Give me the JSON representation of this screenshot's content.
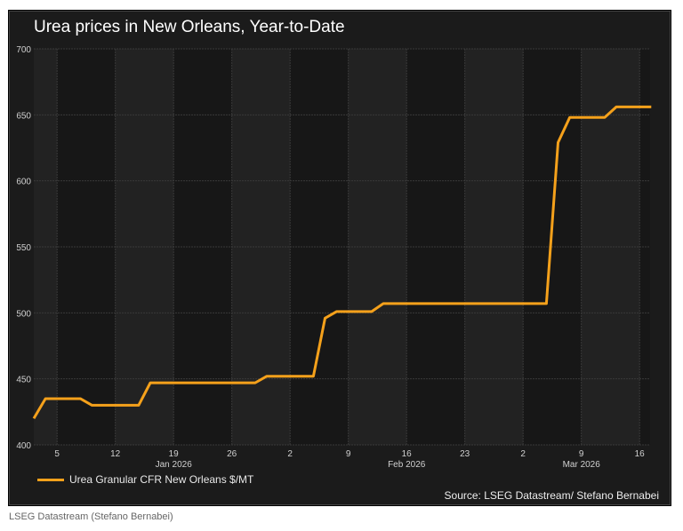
{
  "chart_data": {
    "type": "line",
    "title": "Urea prices in New Orleans, Year-to-Date",
    "xlabel": "",
    "ylabel": "",
    "ylim": [
      400,
      700
    ],
    "yticks": [
      "400",
      "450",
      "500",
      "550",
      "600",
      "650",
      "700"
    ],
    "xticks": [
      {
        "date": "2026-01-05",
        "label": "5"
      },
      {
        "date": "2026-01-12",
        "label": "12"
      },
      {
        "date": "2026-01-19",
        "label": "19"
      },
      {
        "date": "2026-01-26",
        "label": "26"
      },
      {
        "date": "2026-02-02",
        "label": "2"
      },
      {
        "date": "2026-02-09",
        "label": "9"
      },
      {
        "date": "2026-02-16",
        "label": "16"
      },
      {
        "date": "2026-02-23",
        "label": "23"
      },
      {
        "date": "2026-03-02",
        "label": "2"
      },
      {
        "date": "2026-03-09",
        "label": "9"
      },
      {
        "date": "2026-03-16",
        "label": "16"
      }
    ],
    "month_labels": [
      {
        "date": "2026-01-19",
        "label": "Jan 2026"
      },
      {
        "date": "2026-02-16",
        "label": "Feb 2026"
      },
      {
        "date": "2026-03-09",
        "label": "Mar 2026"
      }
    ],
    "grid": true,
    "legend_position": "bottom-left",
    "series": [
      {
        "name": "Urea Granular CFR New Orleans $/MT",
        "color": "#f5a11b",
        "points": [
          [
            "2026-01-01",
            420
          ],
          [
            "2026-01-02",
            435
          ],
          [
            "2026-01-07",
            435
          ],
          [
            "2026-01-08",
            430
          ],
          [
            "2026-01-14",
            430
          ],
          [
            "2026-01-15",
            447
          ],
          [
            "2026-01-28",
            447
          ],
          [
            "2026-01-29",
            452
          ],
          [
            "2026-02-04",
            452
          ],
          [
            "2026-02-05",
            496
          ],
          [
            "2026-02-06",
            501
          ],
          [
            "2026-02-11",
            501
          ],
          [
            "2026-02-12",
            507
          ],
          [
            "2026-03-04",
            507
          ],
          [
            "2026-03-05",
            629
          ],
          [
            "2026-03-06",
            648
          ],
          [
            "2026-03-11",
            648
          ],
          [
            "2026-03-12",
            656
          ],
          [
            "2026-03-17",
            656
          ]
        ]
      }
    ]
  },
  "source": "Source: LSEG Datastream/ Stefano Bernabei",
  "caption": "LSEG Datastream (Stefano Bernabei)"
}
